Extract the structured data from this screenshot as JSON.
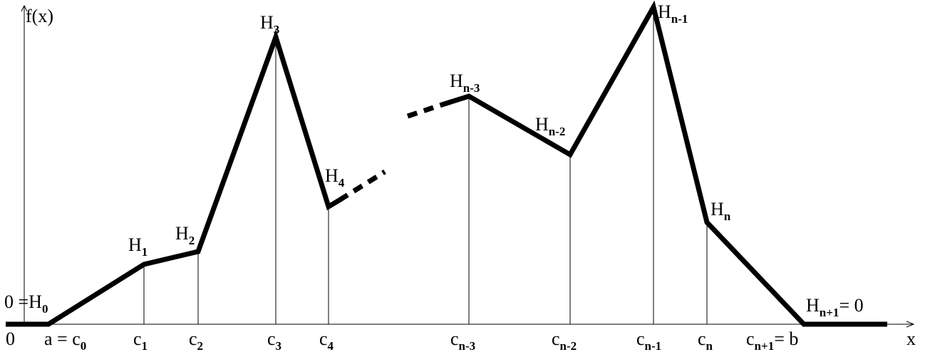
{
  "axes": {
    "y_label": "f(x)",
    "x_label": "x",
    "origin_label": "0"
  },
  "tick_labels": [
    {
      "id": "c0",
      "prefix": "a = ",
      "base": "c",
      "sub": "0"
    },
    {
      "id": "c1",
      "prefix": "",
      "base": "c",
      "sub": "1"
    },
    {
      "id": "c2",
      "prefix": "",
      "base": "c",
      "sub": "2"
    },
    {
      "id": "c3",
      "prefix": "",
      "base": "c",
      "sub": "3"
    },
    {
      "id": "c4",
      "prefix": "",
      "base": "c",
      "sub": "4"
    },
    {
      "id": "cn-3",
      "prefix": "",
      "base": "c",
      "sub": "n-3"
    },
    {
      "id": "cn-2",
      "prefix": "",
      "base": "c",
      "sub": "n-2"
    },
    {
      "id": "cn-1",
      "prefix": "",
      "base": "c",
      "sub": "n-1"
    },
    {
      "id": "cn",
      "prefix": "",
      "base": "c",
      "sub": "n"
    },
    {
      "id": "cn+1",
      "prefix": "",
      "base": "c",
      "sub": "n+1",
      "suffix": "= b"
    }
  ],
  "point_labels": [
    {
      "id": "H0",
      "prefix": "0 =",
      "base": "H",
      "sub": "0"
    },
    {
      "id": "H1",
      "base": "H",
      "sub": "1"
    },
    {
      "id": "H2",
      "base": "H",
      "sub": "2"
    },
    {
      "id": "H3",
      "base": "H",
      "sub": "3"
    },
    {
      "id": "H4",
      "base": "H",
      "sub": "4"
    },
    {
      "id": "Hn-3",
      "base": "H",
      "sub": "n-3"
    },
    {
      "id": "Hn-2",
      "base": "H",
      "sub": "n-2"
    },
    {
      "id": "Hn-1",
      "base": "H",
      "sub": "n-1"
    },
    {
      "id": "Hn",
      "base": "H",
      "sub": "n"
    },
    {
      "id": "Hn+1",
      "base": "H",
      "sub": "n+1",
      "suffix": "= 0"
    }
  ]
}
